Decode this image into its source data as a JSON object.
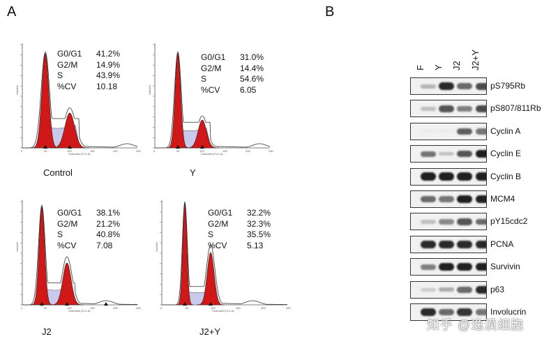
{
  "panel_a_label": "A",
  "panel_b_label": "B",
  "histograms": [
    {
      "condition": "Control",
      "stats": [
        [
          "G0/G1",
          "41.2%"
        ],
        [
          "G2/M",
          "14.9%"
        ],
        [
          "S",
          "43.9%"
        ],
        [
          "%CV",
          "10.18"
        ]
      ]
    },
    {
      "condition": "Y",
      "stats": [
        [
          "G0/G1",
          "31.0%"
        ],
        [
          "G2/M",
          "14.4%"
        ],
        [
          "S",
          "54.6%"
        ],
        [
          "%CV",
          "6.05"
        ]
      ]
    },
    {
      "condition": "J2",
      "stats": [
        [
          "G0/G1",
          "38.1%"
        ],
        [
          "G2/M",
          "21.2%"
        ],
        [
          "S",
          "40.8%"
        ],
        [
          "%CV",
          "7.08"
        ]
      ]
    },
    {
      "condition": "J2+Y",
      "stats": [
        [
          "G0/G1",
          "32.2%"
        ],
        [
          "G2/M",
          "32.3%"
        ],
        [
          "S",
          "35.5%"
        ],
        [
          "%CV",
          "5.13"
        ]
      ]
    }
  ],
  "axis": {
    "ylabel": "Number",
    "xlabel": "Channels (FL2-A)",
    "xticks": [
      "0",
      "50",
      "100",
      "150",
      "200",
      "250"
    ]
  },
  "blot": {
    "lanes": [
      "F",
      "Y",
      "J2",
      "J2+Y"
    ],
    "rows": [
      {
        "label": "pS795Rb",
        "intensity": [
          0.25,
          0.9,
          0.6,
          0.75
        ]
      },
      {
        "label": "pS807/811Rb",
        "intensity": [
          0.2,
          0.7,
          0.5,
          0.75
        ]
      },
      {
        "label": "Cyclin A",
        "intensity": [
          0.0,
          0.0,
          0.65,
          0.55
        ]
      },
      {
        "label": "Cyclin E",
        "intensity": [
          0.55,
          0.2,
          0.7,
          0.95
        ]
      },
      {
        "label": "Cyclin B",
        "intensity": [
          0.95,
          0.95,
          0.95,
          0.95
        ]
      },
      {
        "label": "MCM4",
        "intensity": [
          0.6,
          0.55,
          0.95,
          0.95
        ]
      },
      {
        "label": "pY15cdc2",
        "intensity": [
          0.2,
          0.45,
          0.7,
          0.6
        ]
      },
      {
        "label": "PCNA",
        "intensity": [
          0.9,
          0.9,
          0.9,
          0.9
        ]
      },
      {
        "label": "Survivin",
        "intensity": [
          0.5,
          0.95,
          0.95,
          0.95
        ]
      },
      {
        "label": "p63",
        "intensity": [
          0.15,
          0.3,
          0.6,
          0.9
        ]
      },
      {
        "label": "Involucrin",
        "intensity": [
          0.9,
          0.6,
          0.85,
          0.55
        ]
      }
    ]
  },
  "watermark": "知乎 @逸漠细胞",
  "colors": {
    "g1_fill": "#d01818",
    "s_fill": "#c9c9ec",
    "outline": "#333333"
  }
}
